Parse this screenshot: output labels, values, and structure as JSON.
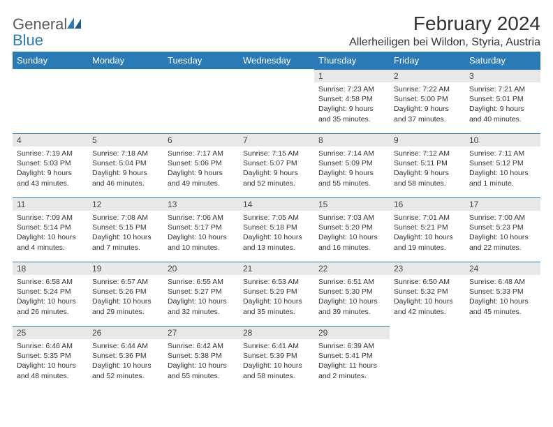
{
  "logo": {
    "text1": "General",
    "text2": "Blue"
  },
  "title": "February 2024",
  "location": "Allerheiligen bei Wildon, Styria, Austria",
  "colors": {
    "header_bg": "#2a7ab8",
    "header_text": "#ffffff",
    "daynum_bg": "#e8e8e8",
    "daynum_border": "#2a7ab8",
    "body_text": "#333333",
    "logo_gray": "#5a5a5a",
    "logo_blue": "#2a7ab8"
  },
  "weekdays": [
    "Sunday",
    "Monday",
    "Tuesday",
    "Wednesday",
    "Thursday",
    "Friday",
    "Saturday"
  ],
  "weeks": [
    [
      null,
      null,
      null,
      null,
      {
        "num": "1",
        "sunrise": "Sunrise: 7:23 AM",
        "sunset": "Sunset: 4:58 PM",
        "daylight": "Daylight: 9 hours and 35 minutes."
      },
      {
        "num": "2",
        "sunrise": "Sunrise: 7:22 AM",
        "sunset": "Sunset: 5:00 PM",
        "daylight": "Daylight: 9 hours and 37 minutes."
      },
      {
        "num": "3",
        "sunrise": "Sunrise: 7:21 AM",
        "sunset": "Sunset: 5:01 PM",
        "daylight": "Daylight: 9 hours and 40 minutes."
      }
    ],
    [
      {
        "num": "4",
        "sunrise": "Sunrise: 7:19 AM",
        "sunset": "Sunset: 5:03 PM",
        "daylight": "Daylight: 9 hours and 43 minutes."
      },
      {
        "num": "5",
        "sunrise": "Sunrise: 7:18 AM",
        "sunset": "Sunset: 5:04 PM",
        "daylight": "Daylight: 9 hours and 46 minutes."
      },
      {
        "num": "6",
        "sunrise": "Sunrise: 7:17 AM",
        "sunset": "Sunset: 5:06 PM",
        "daylight": "Daylight: 9 hours and 49 minutes."
      },
      {
        "num": "7",
        "sunrise": "Sunrise: 7:15 AM",
        "sunset": "Sunset: 5:07 PM",
        "daylight": "Daylight: 9 hours and 52 minutes."
      },
      {
        "num": "8",
        "sunrise": "Sunrise: 7:14 AM",
        "sunset": "Sunset: 5:09 PM",
        "daylight": "Daylight: 9 hours and 55 minutes."
      },
      {
        "num": "9",
        "sunrise": "Sunrise: 7:12 AM",
        "sunset": "Sunset: 5:11 PM",
        "daylight": "Daylight: 9 hours and 58 minutes."
      },
      {
        "num": "10",
        "sunrise": "Sunrise: 7:11 AM",
        "sunset": "Sunset: 5:12 PM",
        "daylight": "Daylight: 10 hours and 1 minute."
      }
    ],
    [
      {
        "num": "11",
        "sunrise": "Sunrise: 7:09 AM",
        "sunset": "Sunset: 5:14 PM",
        "daylight": "Daylight: 10 hours and 4 minutes."
      },
      {
        "num": "12",
        "sunrise": "Sunrise: 7:08 AM",
        "sunset": "Sunset: 5:15 PM",
        "daylight": "Daylight: 10 hours and 7 minutes."
      },
      {
        "num": "13",
        "sunrise": "Sunrise: 7:06 AM",
        "sunset": "Sunset: 5:17 PM",
        "daylight": "Daylight: 10 hours and 10 minutes."
      },
      {
        "num": "14",
        "sunrise": "Sunrise: 7:05 AM",
        "sunset": "Sunset: 5:18 PM",
        "daylight": "Daylight: 10 hours and 13 minutes."
      },
      {
        "num": "15",
        "sunrise": "Sunrise: 7:03 AM",
        "sunset": "Sunset: 5:20 PM",
        "daylight": "Daylight: 10 hours and 16 minutes."
      },
      {
        "num": "16",
        "sunrise": "Sunrise: 7:01 AM",
        "sunset": "Sunset: 5:21 PM",
        "daylight": "Daylight: 10 hours and 19 minutes."
      },
      {
        "num": "17",
        "sunrise": "Sunrise: 7:00 AM",
        "sunset": "Sunset: 5:23 PM",
        "daylight": "Daylight: 10 hours and 22 minutes."
      }
    ],
    [
      {
        "num": "18",
        "sunrise": "Sunrise: 6:58 AM",
        "sunset": "Sunset: 5:24 PM",
        "daylight": "Daylight: 10 hours and 26 minutes."
      },
      {
        "num": "19",
        "sunrise": "Sunrise: 6:57 AM",
        "sunset": "Sunset: 5:26 PM",
        "daylight": "Daylight: 10 hours and 29 minutes."
      },
      {
        "num": "20",
        "sunrise": "Sunrise: 6:55 AM",
        "sunset": "Sunset: 5:27 PM",
        "daylight": "Daylight: 10 hours and 32 minutes."
      },
      {
        "num": "21",
        "sunrise": "Sunrise: 6:53 AM",
        "sunset": "Sunset: 5:29 PM",
        "daylight": "Daylight: 10 hours and 35 minutes."
      },
      {
        "num": "22",
        "sunrise": "Sunrise: 6:51 AM",
        "sunset": "Sunset: 5:30 PM",
        "daylight": "Daylight: 10 hours and 39 minutes."
      },
      {
        "num": "23",
        "sunrise": "Sunrise: 6:50 AM",
        "sunset": "Sunset: 5:32 PM",
        "daylight": "Daylight: 10 hours and 42 minutes."
      },
      {
        "num": "24",
        "sunrise": "Sunrise: 6:48 AM",
        "sunset": "Sunset: 5:33 PM",
        "daylight": "Daylight: 10 hours and 45 minutes."
      }
    ],
    [
      {
        "num": "25",
        "sunrise": "Sunrise: 6:46 AM",
        "sunset": "Sunset: 5:35 PM",
        "daylight": "Daylight: 10 hours and 48 minutes."
      },
      {
        "num": "26",
        "sunrise": "Sunrise: 6:44 AM",
        "sunset": "Sunset: 5:36 PM",
        "daylight": "Daylight: 10 hours and 52 minutes."
      },
      {
        "num": "27",
        "sunrise": "Sunrise: 6:42 AM",
        "sunset": "Sunset: 5:38 PM",
        "daylight": "Daylight: 10 hours and 55 minutes."
      },
      {
        "num": "28",
        "sunrise": "Sunrise: 6:41 AM",
        "sunset": "Sunset: 5:39 PM",
        "daylight": "Daylight: 10 hours and 58 minutes."
      },
      {
        "num": "29",
        "sunrise": "Sunrise: 6:39 AM",
        "sunset": "Sunset: 5:41 PM",
        "daylight": "Daylight: 11 hours and 2 minutes."
      },
      null,
      null
    ]
  ]
}
